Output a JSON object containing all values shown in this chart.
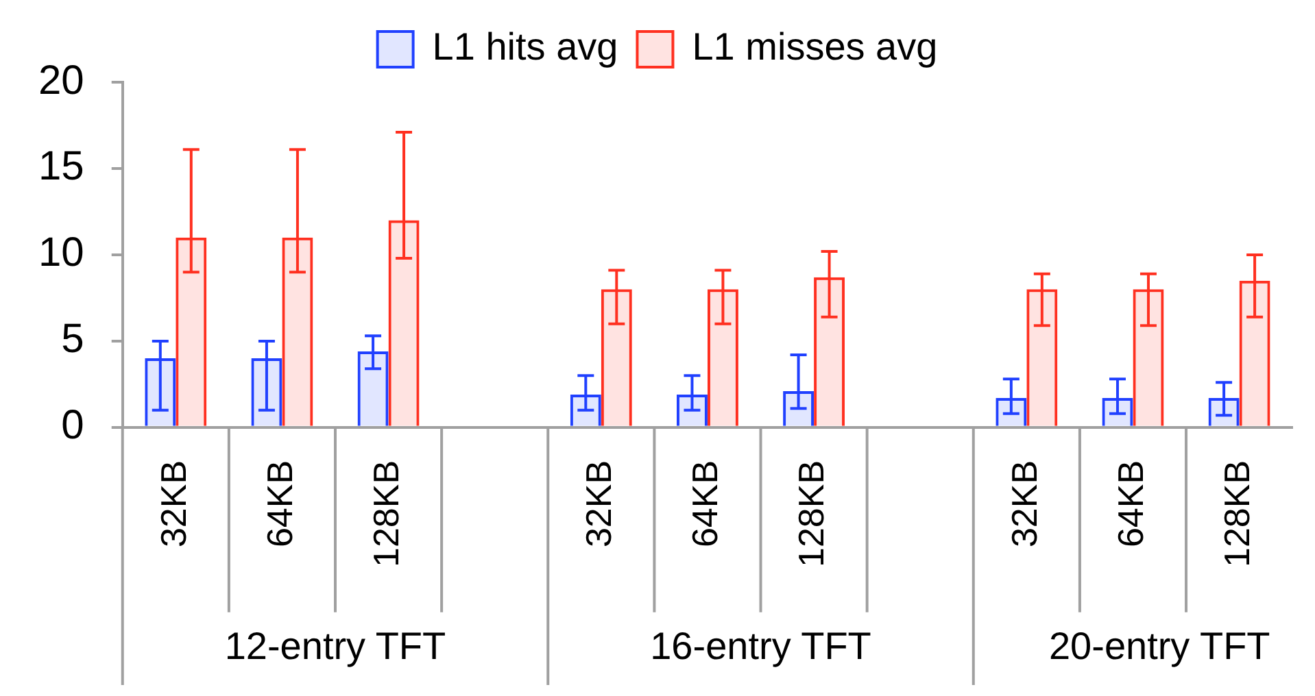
{
  "chart_data": {
    "type": "bar",
    "categories": [
      "32KB",
      "64KB",
      "128KB",
      null,
      "32KB",
      "64KB",
      "128KB",
      null,
      "32KB",
      "64KB",
      "128KB"
    ],
    "series": [
      {
        "name": "L1 hits avg",
        "color": "#2040ff",
        "values": [
          4,
          4,
          4.4,
          null,
          1.9,
          1.9,
          2.1,
          null,
          1.7,
          1.7,
          1.7
        ],
        "errors": [
          [
            1,
            5
          ],
          [
            1,
            5
          ],
          [
            3.4,
            5.3
          ],
          null,
          [
            1,
            3
          ],
          [
            1,
            3
          ],
          [
            1.1,
            4.2
          ],
          null,
          [
            0.8,
            2.8
          ],
          [
            0.8,
            2.8
          ],
          [
            0.7,
            2.6
          ]
        ]
      },
      {
        "name": "L1 misses avg",
        "color": "#ff3020",
        "values": [
          11,
          11,
          12,
          null,
          8,
          8,
          8.7,
          null,
          8,
          8,
          8.5
        ],
        "errors": [
          [
            9,
            16.1
          ],
          [
            9,
            16.1
          ],
          [
            9.8,
            17.1
          ],
          null,
          [
            6,
            9.1
          ],
          [
            6,
            9.1
          ],
          [
            6.4,
            10.2
          ],
          null,
          [
            5.9,
            8.9
          ],
          [
            5.9,
            8.9
          ],
          [
            6.4,
            10
          ]
        ]
      }
    ],
    "ylim": [
      0,
      20
    ],
    "yticks": [
      0,
      5,
      10,
      15,
      20
    ],
    "legend": "top",
    "annotations": [
      "12-entry TFT",
      "16-entry TFT",
      "20-entry TFT"
    ]
  }
}
